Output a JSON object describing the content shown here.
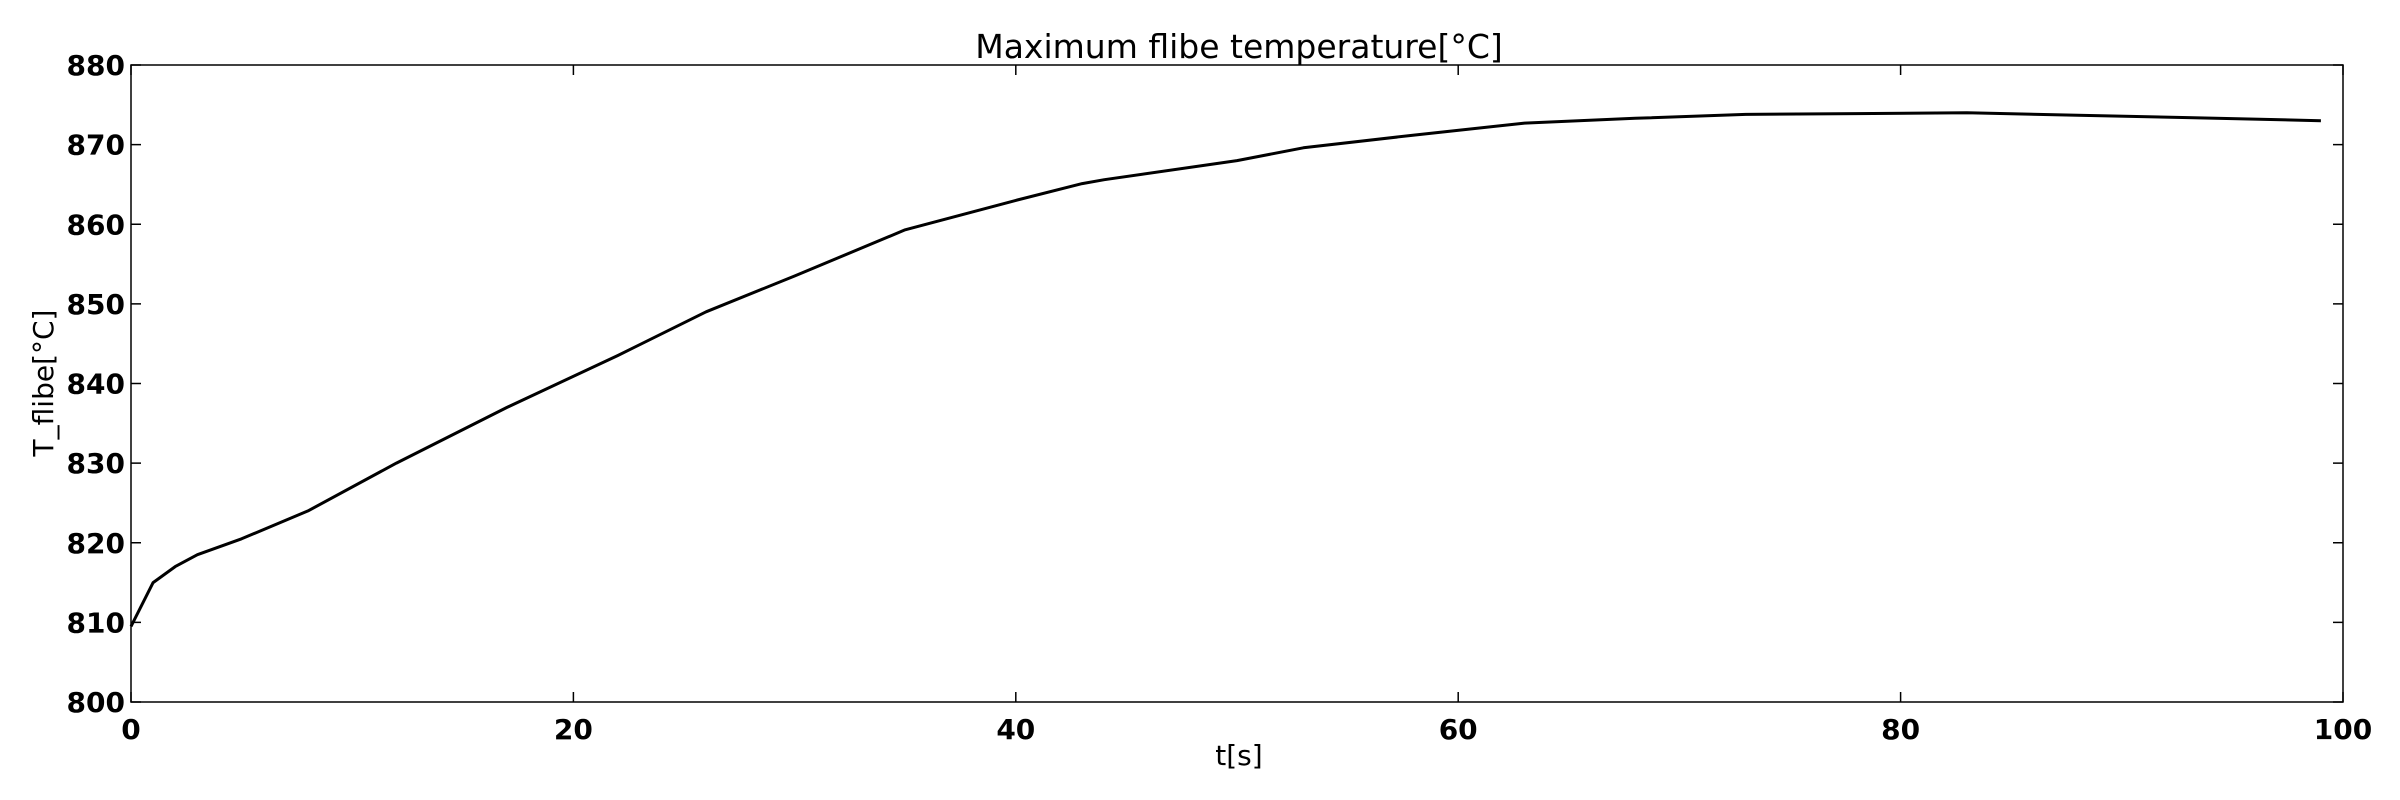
{
  "chart_data": {
    "type": "line",
    "title": "Maximum flibe temperature[°C]",
    "xlabel": "t[s]",
    "ylabel": "T_flibe[°C]",
    "xlim": [
      0,
      100
    ],
    "ylim": [
      800,
      880
    ],
    "xticks": [
      0,
      20,
      40,
      60,
      80,
      100
    ],
    "yticks": [
      800,
      810,
      820,
      830,
      840,
      850,
      860,
      870,
      880
    ],
    "xtick_labels": [
      "0",
      "20",
      "40",
      "60",
      "80",
      "100"
    ],
    "ytick_labels": [
      "800",
      "810",
      "820",
      "830",
      "840",
      "850",
      "860",
      "870",
      "880"
    ],
    "grid": false,
    "legend": "none",
    "line_color": "#000000",
    "series": [
      {
        "x": [
          0,
          1,
          2,
          3,
          5,
          8,
          12,
          17,
          22,
          26,
          30,
          35,
          40,
          43,
          44,
          50,
          53,
          58,
          63,
          68,
          73,
          78,
          83,
          88,
          93,
          99
        ],
        "y": [
          809.5,
          815,
          817,
          818.5,
          820.5,
          824,
          830,
          837,
          843.5,
          849,
          853.5,
          859.3,
          863,
          865.1,
          865.6,
          868,
          869.6,
          871.2,
          872.7,
          873.3,
          873.8,
          873.9,
          874,
          873.7,
          873.4,
          873
        ]
      }
    ]
  }
}
